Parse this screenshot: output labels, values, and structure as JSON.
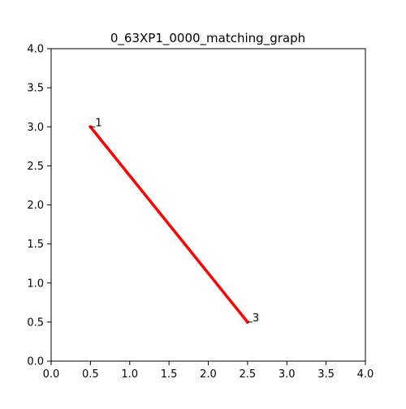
{
  "chart_data": {
    "type": "line",
    "title": "0_63XP1_0000_matching_graph",
    "xlabel": "",
    "ylabel": "",
    "xlim": [
      0.0,
      4.0
    ],
    "ylim": [
      0.0,
      4.0
    ],
    "xticks": [
      "0.0",
      "0.5",
      "1.0",
      "1.5",
      "2.0",
      "2.5",
      "3.0",
      "3.5",
      "4.0"
    ],
    "yticks": [
      "0.0",
      "0.5",
      "1.0",
      "1.5",
      "2.0",
      "2.5",
      "3.0",
      "3.5",
      "4.0"
    ],
    "grid": false,
    "edge_color": "#ff0000",
    "nodes": [
      {
        "label": "1",
        "x": 0.5,
        "y": 3.0
      },
      {
        "label": "3",
        "x": 2.5,
        "y": 0.5
      }
    ],
    "edges": [
      {
        "from": "1",
        "to": "3"
      }
    ]
  }
}
